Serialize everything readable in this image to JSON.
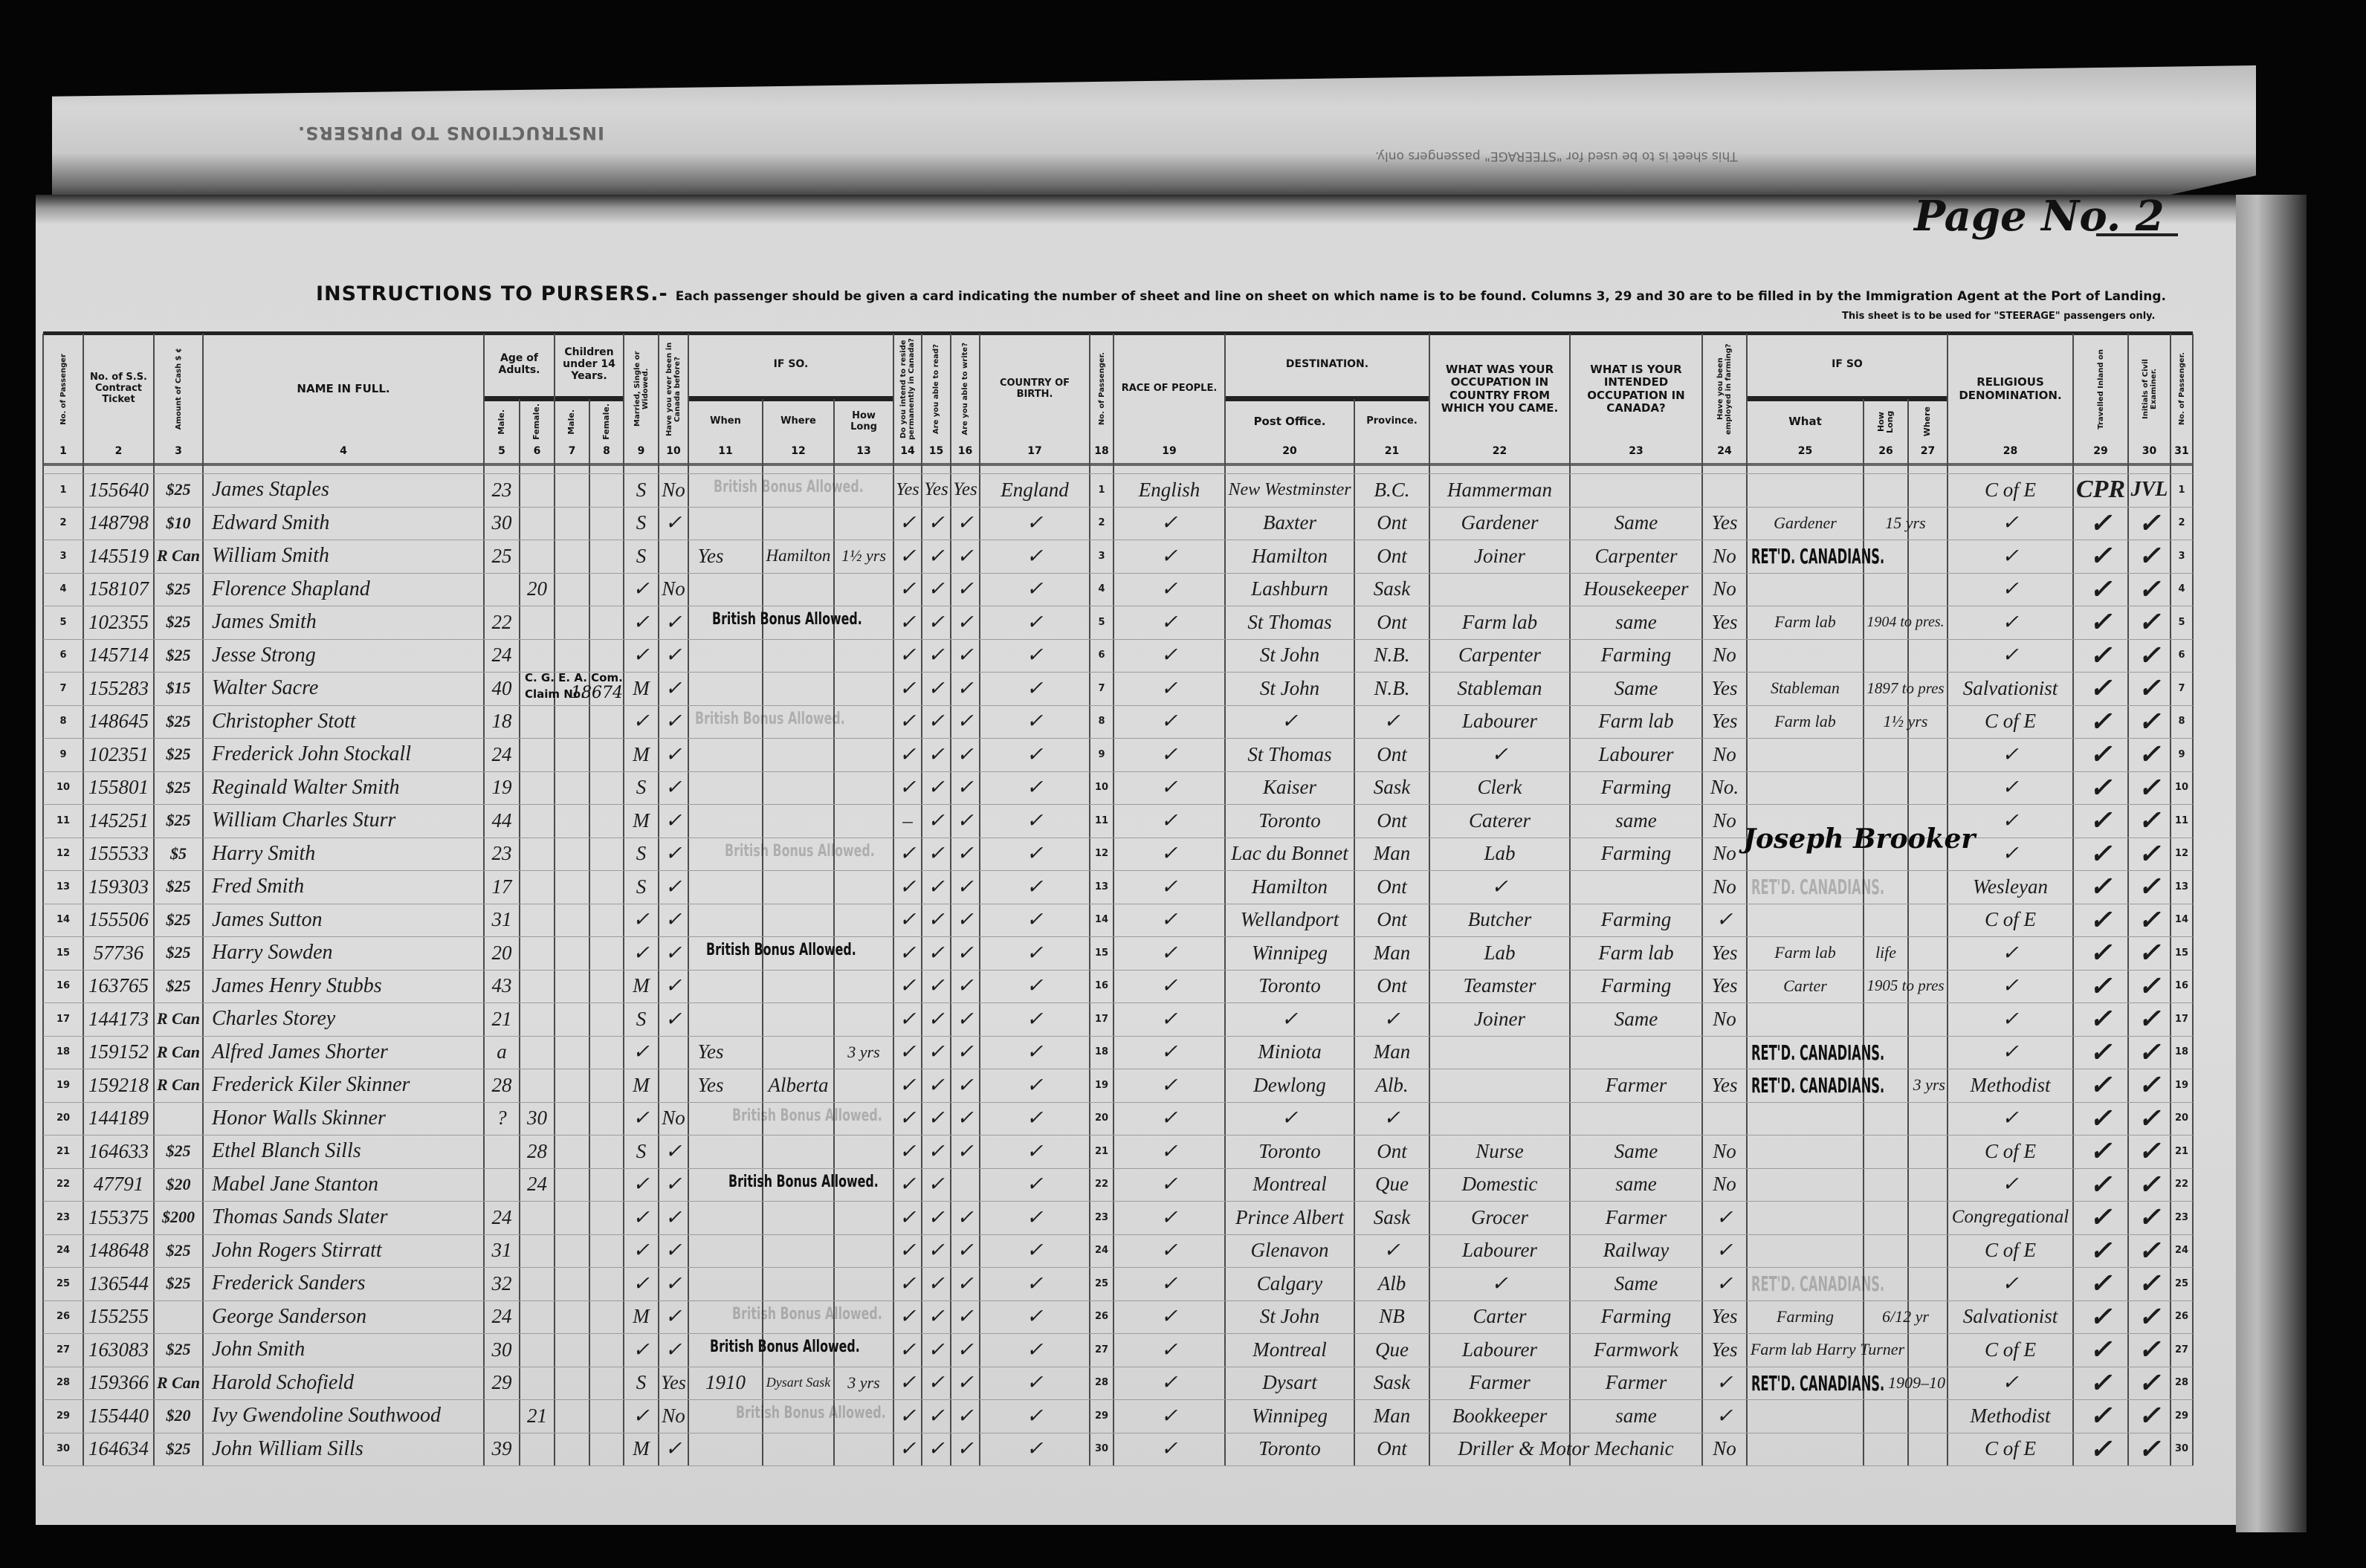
{
  "curl": {
    "bleed_title": "INSTRUCTIONS TO PURSERS.",
    "bleed_text": "This sheet is to be used for \"STEERAGE\" passengers only."
  },
  "page_number": "Page No. 2",
  "instructions": {
    "heading": "INSTRUCTIONS TO PURSERS.-",
    "text": "Each passenger should be given a card indicating the number of sheet and line on sheet on which name is to be found.  Columns 3, 29 and 30 are to be filled in by the Immigration Agent at the Port of Landing.",
    "steerage_note": "This sheet is to be used for \"STEERAGE\" passengers only."
  },
  "header": {
    "groups": [
      {
        "label": "Age of Adults."
      },
      {
        "label": "Children under 14 Years."
      },
      {
        "label": "IF SO."
      },
      {
        "label": "DESTINATION."
      },
      {
        "label": "IF SO"
      }
    ],
    "columns": [
      {
        "num": "1",
        "label": "No. of Passenger"
      },
      {
        "num": "2",
        "label": "No. of S.S. Contract Ticket"
      },
      {
        "num": "3",
        "label": "Amount of Cash $ ¢"
      },
      {
        "num": "4",
        "label": "NAME IN FULL."
      },
      {
        "num": "5",
        "label": "Male."
      },
      {
        "num": "6",
        "label": "Female."
      },
      {
        "num": "7",
        "label": "Male."
      },
      {
        "num": "8",
        "label": "Female."
      },
      {
        "num": "9",
        "label": "Married, Single or Widowed."
      },
      {
        "num": "10",
        "label": "Have you ever been in Canada before?"
      },
      {
        "num": "11",
        "label": "When"
      },
      {
        "num": "12",
        "label": "Where"
      },
      {
        "num": "13",
        "label": "How Long"
      },
      {
        "num": "14",
        "label": "Do you intend to reside permanently in Canada?"
      },
      {
        "num": "15",
        "label": "Are you able to read?"
      },
      {
        "num": "16",
        "label": "Are you able to write?"
      },
      {
        "num": "17",
        "label": "COUNTRY OF BIRTH."
      },
      {
        "num": "18",
        "label": "No. of Passenger."
      },
      {
        "num": "19",
        "label": "RACE OF PEOPLE."
      },
      {
        "num": "20",
        "label": "Post Office."
      },
      {
        "num": "21",
        "label": "Province."
      },
      {
        "num": "22",
        "label": "WHAT WAS YOUR OCCUPATION IN COUNTRY FROM WHICH YOU CAME."
      },
      {
        "num": "23",
        "label": "WHAT IS YOUR INTENDED OCCUPATION IN CANADA?"
      },
      {
        "num": "24",
        "label": "Have you been employed in farming?"
      },
      {
        "num": "25",
        "label": "What"
      },
      {
        "num": "26",
        "label": "How Long"
      },
      {
        "num": "27",
        "label": "Where"
      },
      {
        "num": "28",
        "label": "RELIGIOUS DENOMINATION."
      },
      {
        "num": "29",
        "label": "Travelled Inland on"
      },
      {
        "num": "30",
        "label": "Initials of Civil Examiner."
      },
      {
        "num": "31",
        "label": "No. of Passenger."
      }
    ]
  },
  "rows": [
    [
      "1",
      "155640",
      "$25",
      "James Staples",
      "23",
      "",
      "",
      "",
      "S",
      "No",
      "",
      "",
      "",
      "Yes",
      "Yes",
      "Yes",
      "England",
      "1",
      "English",
      "New Westminster",
      "B.C.",
      "Hammerman",
      "",
      "",
      "",
      "",
      "",
      "C of E",
      "CPR",
      "JVL",
      "1"
    ],
    [
      "2",
      "148798",
      "$10",
      "Edward Smith",
      "30",
      "",
      "",
      "",
      "S",
      "✓",
      "",
      "",
      "",
      "✓",
      "✓",
      "✓",
      "✓",
      "2",
      "✓",
      "Baxter",
      "Ont",
      "Gardener",
      "Same",
      "Yes",
      "Gardener",
      "15 yrs",
      "",
      "✓",
      "✓",
      "✓",
      "2"
    ],
    [
      "3",
      "145519",
      "R Can",
      "William Smith",
      "25",
      "",
      "",
      "",
      "S",
      "Yes",
      "",
      "Hamilton",
      "1½ yrs",
      "✓",
      "✓",
      "✓",
      "✓",
      "3",
      "✓",
      "Hamilton",
      "Ont",
      "Joiner",
      "Carpenter",
      "No",
      "",
      "",
      "",
      "✓",
      "✓",
      "✓",
      "3"
    ],
    [
      "4",
      "158107",
      "$25",
      "Florence Shapland",
      "",
      "20",
      "",
      "",
      "✓",
      "No",
      "",
      "",
      "",
      "✓",
      "✓",
      "✓",
      "✓",
      "4",
      "✓",
      "Lashburn",
      "Sask",
      "",
      "Housekeeper",
      "No",
      "",
      "",
      "",
      "✓",
      "✓",
      "✓",
      "4"
    ],
    [
      "5",
      "102355",
      "$25",
      "James Smith",
      "22",
      "",
      "",
      "",
      "✓",
      "✓",
      "",
      "",
      "",
      "✓",
      "✓",
      "✓",
      "✓",
      "5",
      "✓",
      "St Thomas",
      "Ont",
      "Farm lab",
      "same",
      "Yes",
      "Farm lab",
      "1904 to pres.",
      "",
      "✓",
      "✓",
      "✓",
      "5"
    ],
    [
      "6",
      "145714",
      "$25",
      "Jesse Strong",
      "24",
      "",
      "",
      "",
      "✓",
      "✓",
      "",
      "",
      "",
      "✓",
      "✓",
      "✓",
      "✓",
      "6",
      "✓",
      "St John",
      "N.B.",
      "Carpenter",
      "Farming",
      "No",
      "",
      "",
      "",
      "✓",
      "✓",
      "✓",
      "6"
    ],
    [
      "7",
      "155283",
      "$15",
      "Walter Sacre",
      "40",
      "",
      "",
      "",
      "M",
      "✓",
      "",
      "",
      "",
      "✓",
      "✓",
      "✓",
      "✓",
      "7",
      "✓",
      "St John",
      "N.B.",
      "Stableman",
      "Same",
      "Yes",
      "Stableman",
      "1897 to pres",
      "",
      "Salvationist",
      "✓",
      "✓",
      "7"
    ],
    [
      "8",
      "148645",
      "$25",
      "Christopher Stott",
      "18",
      "",
      "",
      "",
      "✓",
      "✓",
      "",
      "",
      "",
      "✓",
      "✓",
      "✓",
      "✓",
      "8",
      "✓",
      "✓",
      "✓",
      "Labourer",
      "Farm lab",
      "Yes",
      "Farm lab",
      "1½ yrs",
      "",
      "C of E",
      "✓",
      "✓",
      "8"
    ],
    [
      "9",
      "102351",
      "$25",
      "Frederick John Stockall",
      "24",
      "",
      "",
      "",
      "M",
      "✓",
      "",
      "",
      "",
      "✓",
      "✓",
      "✓",
      "✓",
      "9",
      "✓",
      "St Thomas",
      "Ont",
      "✓",
      "Labourer",
      "No",
      "",
      "",
      "",
      "✓",
      "✓",
      "✓",
      "9"
    ],
    [
      "10",
      "155801",
      "$25",
      "Reginald Walter Smith",
      "19",
      "",
      "",
      "",
      "S",
      "✓",
      "",
      "",
      "",
      "✓",
      "✓",
      "✓",
      "✓",
      "10",
      "✓",
      "Kaiser",
      "Sask",
      "Clerk",
      "Farming",
      "No.",
      "",
      "",
      "",
      "✓",
      "✓",
      "✓",
      "10"
    ],
    [
      "11",
      "145251",
      "$25",
      "William Charles Sturr",
      "44",
      "",
      "",
      "",
      "M",
      "✓",
      "",
      "",
      "",
      "–",
      "✓",
      "✓",
      "✓",
      "11",
      "✓",
      "Toronto",
      "Ont",
      "Caterer",
      "same",
      "No",
      "",
      "",
      "",
      "✓",
      "✓",
      "✓",
      "11"
    ],
    [
      "12",
      "155533",
      "$5",
      "Harry Smith",
      "23",
      "",
      "",
      "",
      "S",
      "✓",
      "",
      "",
      "",
      "✓",
      "✓",
      "✓",
      "✓",
      "12",
      "✓",
      "Lac du Bonnet",
      "Man",
      "Lab",
      "Farming",
      "No",
      "",
      "",
      "",
      "✓",
      "✓",
      "✓",
      "12"
    ],
    [
      "13",
      "159303",
      "$25",
      "Fred Smith",
      "17",
      "",
      "",
      "",
      "S",
      "✓",
      "",
      "",
      "",
      "✓",
      "✓",
      "✓",
      "✓",
      "13",
      "✓",
      "Hamilton",
      "Ont",
      "✓",
      "",
      "No",
      "",
      "",
      "",
      "Wesleyan",
      "✓",
      "✓",
      "13"
    ],
    [
      "14",
      "155506",
      "$25",
      "James Sutton",
      "31",
      "",
      "",
      "",
      "✓",
      "✓",
      "",
      "",
      "",
      "✓",
      "✓",
      "✓",
      "✓",
      "14",
      "✓",
      "Wellandport",
      "Ont",
      "Butcher",
      "Farming",
      "✓",
      "",
      "",
      "",
      "C of E",
      "✓",
      "✓",
      "14"
    ],
    [
      "15",
      "57736",
      "$25",
      "Harry Sowden",
      "20",
      "",
      "",
      "",
      "✓",
      "✓",
      "",
      "",
      "",
      "✓",
      "✓",
      "✓",
      "✓",
      "15",
      "✓",
      "Winnipeg",
      "Man",
      "Lab",
      "Farm lab",
      "Yes",
      "Farm lab",
      "life",
      "",
      "✓",
      "✓",
      "✓",
      "15"
    ],
    [
      "16",
      "163765",
      "$25",
      "James Henry Stubbs",
      "43",
      "",
      "",
      "",
      "M",
      "✓",
      "",
      "",
      "",
      "✓",
      "✓",
      "✓",
      "✓",
      "16",
      "✓",
      "Toronto",
      "Ont",
      "Teamster",
      "Farming",
      "Yes",
      "Carter",
      "1905 to pres",
      "",
      "✓",
      "✓",
      "✓",
      "16"
    ],
    [
      "17",
      "144173",
      "R Can",
      "Charles Storey",
      "21",
      "",
      "",
      "",
      "S",
      "✓",
      "",
      "",
      "",
      "✓",
      "✓",
      "✓",
      "✓",
      "17",
      "✓",
      "✓",
      "✓",
      "Joiner",
      "Same",
      "No",
      "",
      "",
      "",
      "✓",
      "✓",
      "✓",
      "17"
    ],
    [
      "18",
      "159152",
      "R Can",
      "Alfred James Shorter",
      "a",
      "",
      "",
      "",
      "✓",
      "Yes",
      "",
      "",
      "3 yrs",
      "✓",
      "✓",
      "✓",
      "✓",
      "18",
      "✓",
      "Miniota",
      "Man",
      "",
      "",
      "",
      "",
      "",
      "",
      "✓",
      "✓",
      "✓",
      "18"
    ],
    [
      "19",
      "159218",
      "R Can",
      "Frederick Kiler Skinner",
      "28",
      "",
      "",
      "",
      "M",
      "Yes",
      "",
      "Alberta",
      "",
      "✓",
      "✓",
      "✓",
      "✓",
      "19",
      "✓",
      "Dewlong",
      "Alb.",
      "",
      "Farmer",
      "Yes",
      "",
      "3 yrs",
      "",
      "Methodist",
      "✓",
      "✓",
      "19"
    ],
    [
      "20",
      "144189",
      "",
      "Honor Walls Skinner",
      "?",
      "30",
      "",
      "",
      "✓",
      "No",
      "",
      "",
      "",
      "✓",
      "✓",
      "✓",
      "✓",
      "20",
      "✓",
      "✓",
      "✓",
      "",
      "",
      "",
      "",
      "",
      "",
      "✓",
      "✓",
      "✓",
      "20"
    ],
    [
      "21",
      "164633",
      "$25",
      "Ethel Blanch Sills",
      "",
      "28",
      "",
      "",
      "S",
      "✓",
      "",
      "",
      "",
      "✓",
      "✓",
      "✓",
      "✓",
      "21",
      "✓",
      "Toronto",
      "Ont",
      "Nurse",
      "Same",
      "No",
      "",
      "",
      "",
      "C of E",
      "✓",
      "✓",
      "21"
    ],
    [
      "22",
      "47791",
      "$20",
      "Mabel Jane Stanton",
      "",
      "24",
      "",
      "",
      "✓",
      "✓",
      "",
      "",
      "",
      "✓",
      "✓",
      "",
      "✓",
      "22",
      "✓",
      "Montreal",
      "Que",
      "Domestic",
      "same",
      "No",
      "",
      "",
      "",
      "✓",
      "✓",
      "✓",
      "22"
    ],
    [
      "23",
      "155375",
      "$200",
      "Thomas Sands Slater",
      "24",
      "",
      "",
      "",
      "✓",
      "✓",
      "",
      "",
      "",
      "✓",
      "✓",
      "✓",
      "✓",
      "23",
      "✓",
      "Prince Albert",
      "Sask",
      "Grocer",
      "Farmer",
      "✓",
      "",
      "",
      "",
      "Congregational",
      "✓",
      "✓",
      "23"
    ],
    [
      "24",
      "148648",
      "$25",
      "John Rogers Stirratt",
      "31",
      "",
      "",
      "",
      "✓",
      "✓",
      "",
      "",
      "",
      "✓",
      "✓",
      "✓",
      "✓",
      "24",
      "✓",
      "Glenavon",
      "✓",
      "Labourer",
      "Railway",
      "✓",
      "",
      "",
      "",
      "C of E",
      "✓",
      "✓",
      "24"
    ],
    [
      "25",
      "136544",
      "$25",
      "Frederick Sanders",
      "32",
      "",
      "",
      "",
      "✓",
      "✓",
      "",
      "",
      "",
      "✓",
      "✓",
      "✓",
      "✓",
      "25",
      "✓",
      "Calgary",
      "Alb",
      "✓",
      "Same",
      "✓",
      "",
      "",
      "",
      "✓",
      "✓",
      "✓",
      "25"
    ],
    [
      "26",
      "155255",
      "",
      "George Sanderson",
      "24",
      "",
      "",
      "",
      "M",
      "✓",
      "",
      "",
      "",
      "✓",
      "✓",
      "✓",
      "✓",
      "26",
      "✓",
      "St John",
      "NB",
      "Carter",
      "Farming",
      "Yes",
      "Farming",
      "6/12 yr",
      "",
      "Salvationist",
      "✓",
      "✓",
      "26"
    ],
    [
      "27",
      "163083",
      "$25",
      "John Smith",
      "30",
      "",
      "",
      "",
      "✓",
      "✓",
      "",
      "",
      "",
      "✓",
      "✓",
      "✓",
      "✓",
      "27",
      "✓",
      "Montreal",
      "Que",
      "Labourer",
      "Farmwork",
      "Yes",
      "Farm lab Harry Turner",
      "",
      "",
      "C of E",
      "✓",
      "✓",
      "27"
    ],
    [
      "28",
      "159366",
      "R Can",
      "Harold Schofield",
      "29",
      "",
      "",
      "",
      "S",
      "Yes",
      "1910",
      "Dysart Sask",
      "3 yrs",
      "✓",
      "✓",
      "✓",
      "✓",
      "28",
      "✓",
      "Dysart",
      "Sask",
      "Farmer",
      "Farmer",
      "✓",
      "",
      "1909–10",
      "",
      "✓",
      "✓",
      "✓",
      "28"
    ],
    [
      "29",
      "155440",
      "$20",
      "Ivy Gwendoline Southwood",
      "",
      "21",
      "",
      "",
      "✓",
      "No",
      "",
      "",
      "",
      "✓",
      "✓",
      "✓",
      "✓",
      "29",
      "✓",
      "Winnipeg",
      "Man",
      "Bookkeeper",
      "same",
      "✓",
      "",
      "",
      "",
      "Methodist",
      "✓",
      "✓",
      "29"
    ],
    [
      "30",
      "164634",
      "$25",
      "John William Sills",
      "39",
      "",
      "",
      "",
      "M",
      "✓",
      "",
      "",
      "",
      "✓",
      "✓",
      "✓",
      "✓",
      "30",
      "✓",
      "Toronto",
      "Ont",
      "Driller & Motor Mechanic",
      "",
      "No",
      "",
      "",
      "",
      "C of E",
      "✓",
      "✓",
      "30"
    ]
  ],
  "stamps": {
    "british_bonus": "British Bonus Allowed.",
    "retd_canadians": "RET'D. CANADIANS.",
    "cgea": "C. G. E. A. Com.",
    "claim": "Claim No.",
    "claim_no": "18674"
  },
  "signature": "Joseph Brooker"
}
